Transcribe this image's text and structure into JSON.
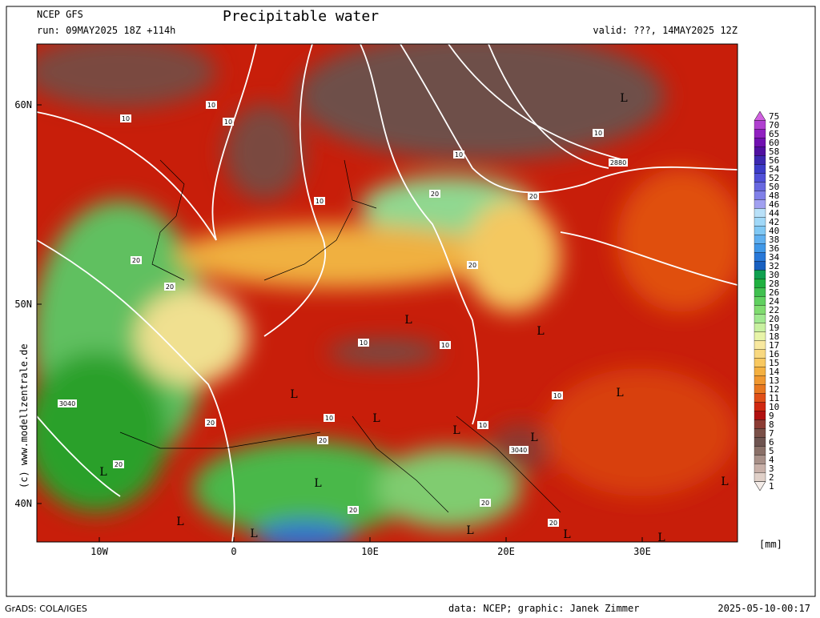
{
  "header": {
    "model": "NCEP GFS",
    "run": "run: 09MAY2025 18Z +114h",
    "title": "Precipitable water",
    "valid": "valid: ???, 14MAY2025 12Z"
  },
  "map": {
    "lat_labels": [
      "60N",
      "50N",
      "40N"
    ],
    "lon_labels": [
      "10W",
      "0",
      "10E",
      "20E",
      "30E"
    ],
    "contour_labels": [
      "10",
      "10",
      "10",
      "10",
      "10",
      "10",
      "10",
      "10",
      "10",
      "10",
      "10",
      "20",
      "20",
      "20",
      "20",
      "20",
      "20",
      "20",
      "20",
      "20",
      "20",
      "20",
      "2880",
      "3040",
      "3040"
    ],
    "lows": [
      "L",
      "L",
      "L",
      "L",
      "L",
      "L",
      "L",
      "L",
      "L",
      "L",
      "L",
      "L",
      "L",
      "L",
      "L",
      "L"
    ],
    "side_credit": "(c) www.modellzentrale.de"
  },
  "colorbar": {
    "labels": [
      75,
      70,
      65,
      60,
      58,
      56,
      54,
      52,
      50,
      48,
      46,
      44,
      42,
      40,
      38,
      36,
      34,
      32,
      30,
      28,
      26,
      24,
      22,
      20,
      19,
      18,
      17,
      16,
      15,
      14,
      13,
      12,
      11,
      10,
      9,
      8,
      7,
      6,
      5,
      4,
      3,
      2,
      1
    ],
    "unit": "[mm]"
  },
  "footer": {
    "left": "GrADS: COLA/IGES",
    "data": "data: NCEP; graphic: Janek Zimmer",
    "date": "2025-05-10-00:17"
  }
}
